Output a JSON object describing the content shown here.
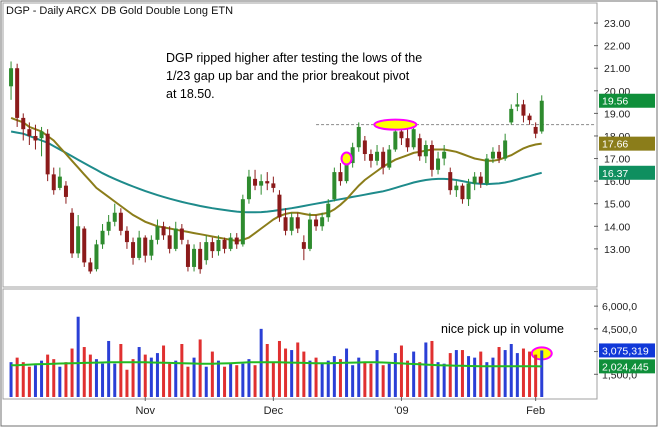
{
  "header": {
    "title": "DGP - Daily",
    "exchange": "ARCX",
    "name": "DB Gold Double Long ETN"
  },
  "annotations": {
    "breakout_note": [
      "DGP ripped higher after testing the lows of the",
      "1/23 gap up bar and the prior breakout pivot",
      "at 18.50."
    ],
    "volume_note": "nice pick up in volume"
  },
  "colors": {
    "background": "#ffffff",
    "frame": "#a0a0a0",
    "candle_up": "#2e8b2e",
    "candle_down": "#8b1a1a",
    "ma_short": "#8b7d1a",
    "ma_long": "#1e8b8b",
    "vol_up": "#2a3fd6",
    "vol_down": "#e03030",
    "vol_ma": "#22bb22",
    "highlight": "#ff00ff",
    "highlight_fill": "#ffff00",
    "pivot_line": "#8a8a8a",
    "tag_green": "#0f8f3a",
    "tag_teal": "#0f8f5f",
    "tag_blue": "#1038d8"
  },
  "chart_data": [
    {
      "type": "candlestick",
      "title": "DGP - Daily  ARCX  DB Gold Double Long ETN",
      "ylim": [
        11.4,
        23.8
      ],
      "y_ticks": [
        13.0,
        14.0,
        15.0,
        16.0,
        17.0,
        18.0,
        19.0,
        20.0,
        21.0,
        22.0,
        23.0
      ],
      "y_tick_labels": [
        "13.00",
        "14.00",
        "15.00",
        "16.00",
        "17.00",
        "18.00",
        "19.00",
        "20.00",
        "21.00",
        "22.00",
        "23.00"
      ],
      "x_labels": [
        {
          "label": "Nov",
          "index": 22
        },
        {
          "label": "Dec",
          "index": 43
        },
        {
          "label": "'09",
          "index": 64
        },
        {
          "label": "Feb",
          "index": 86
        }
      ],
      "pivot_level": 18.5,
      "price_tags": [
        {
          "label": "19.56",
          "value": 19.56,
          "color": "#0f8f3a"
        },
        {
          "label": "17.66",
          "value": 17.66,
          "color": "#8b7d1a"
        },
        {
          "label": "16.37",
          "value": 16.37,
          "color": "#0f8f5f"
        }
      ],
      "highlight_indices": [
        55,
        62,
        63,
        64
      ],
      "candles": [
        {
          "o": 20.2,
          "h": 21.3,
          "l": 19.6,
          "c": 21.0
        },
        {
          "o": 21.0,
          "h": 21.2,
          "l": 18.4,
          "c": 18.8
        },
        {
          "o": 18.8,
          "h": 19.0,
          "l": 17.8,
          "c": 18.3
        },
        {
          "o": 18.3,
          "h": 18.6,
          "l": 17.6,
          "c": 18.0
        },
        {
          "o": 18.0,
          "h": 18.5,
          "l": 17.4,
          "c": 17.8
        },
        {
          "o": 17.9,
          "h": 18.4,
          "l": 17.1,
          "c": 18.2
        },
        {
          "o": 18.1,
          "h": 18.3,
          "l": 16.0,
          "c": 16.3
        },
        {
          "o": 16.3,
          "h": 16.6,
          "l": 15.4,
          "c": 15.6
        },
        {
          "o": 15.7,
          "h": 16.6,
          "l": 15.6,
          "c": 16.2
        },
        {
          "o": 15.8,
          "h": 16.0,
          "l": 15.0,
          "c": 15.3
        },
        {
          "o": 14.6,
          "h": 14.8,
          "l": 12.6,
          "c": 12.8
        },
        {
          "o": 12.8,
          "h": 14.5,
          "l": 12.6,
          "c": 14.0
        },
        {
          "o": 13.9,
          "h": 14.0,
          "l": 12.2,
          "c": 12.4
        },
        {
          "o": 12.4,
          "h": 12.6,
          "l": 11.9,
          "c": 12.0
        },
        {
          "o": 12.1,
          "h": 13.4,
          "l": 12.0,
          "c": 13.2
        },
        {
          "o": 13.2,
          "h": 14.1,
          "l": 13.0,
          "c": 13.8
        },
        {
          "o": 13.8,
          "h": 14.5,
          "l": 13.6,
          "c": 14.2
        },
        {
          "o": 14.2,
          "h": 15.0,
          "l": 14.0,
          "c": 14.6
        },
        {
          "o": 14.6,
          "h": 14.8,
          "l": 13.6,
          "c": 13.8
        },
        {
          "o": 13.8,
          "h": 14.0,
          "l": 13.0,
          "c": 13.3
        },
        {
          "o": 13.3,
          "h": 13.5,
          "l": 12.3,
          "c": 12.6
        },
        {
          "o": 12.6,
          "h": 13.8,
          "l": 12.5,
          "c": 13.5
        },
        {
          "o": 13.5,
          "h": 13.6,
          "l": 12.4,
          "c": 12.7
        },
        {
          "o": 12.7,
          "h": 13.6,
          "l": 12.5,
          "c": 13.4
        },
        {
          "o": 13.4,
          "h": 14.3,
          "l": 13.2,
          "c": 14.0
        },
        {
          "o": 14.0,
          "h": 14.2,
          "l": 13.4,
          "c": 13.6
        },
        {
          "o": 13.6,
          "h": 14.0,
          "l": 12.8,
          "c": 13.0
        },
        {
          "o": 13.0,
          "h": 14.2,
          "l": 12.9,
          "c": 13.9
        },
        {
          "o": 13.9,
          "h": 14.1,
          "l": 13.2,
          "c": 13.4
        },
        {
          "o": 13.2,
          "h": 13.4,
          "l": 12.0,
          "c": 12.2
        },
        {
          "o": 12.2,
          "h": 13.2,
          "l": 12.0,
          "c": 13.0
        },
        {
          "o": 13.0,
          "h": 13.3,
          "l": 11.9,
          "c": 12.1
        },
        {
          "o": 12.5,
          "h": 13.6,
          "l": 12.3,
          "c": 13.3
        },
        {
          "o": 13.3,
          "h": 13.5,
          "l": 12.6,
          "c": 12.9
        },
        {
          "o": 12.9,
          "h": 13.6,
          "l": 12.7,
          "c": 13.4
        },
        {
          "o": 13.4,
          "h": 13.5,
          "l": 12.8,
          "c": 13.0
        },
        {
          "o": 13.0,
          "h": 13.7,
          "l": 12.9,
          "c": 13.5
        },
        {
          "o": 13.5,
          "h": 13.7,
          "l": 13.0,
          "c": 13.2
        },
        {
          "o": 13.2,
          "h": 15.4,
          "l": 13.1,
          "c": 15.2
        },
        {
          "o": 15.2,
          "h": 16.5,
          "l": 15.0,
          "c": 16.2
        },
        {
          "o": 16.1,
          "h": 16.5,
          "l": 15.6,
          "c": 15.8
        },
        {
          "o": 15.8,
          "h": 16.3,
          "l": 15.4,
          "c": 16.0
        },
        {
          "o": 16.0,
          "h": 16.4,
          "l": 15.6,
          "c": 15.9
        },
        {
          "o": 15.9,
          "h": 16.2,
          "l": 15.5,
          "c": 15.7
        },
        {
          "o": 15.4,
          "h": 15.6,
          "l": 14.2,
          "c": 14.4
        },
        {
          "o": 14.4,
          "h": 14.8,
          "l": 13.6,
          "c": 13.8
        },
        {
          "o": 13.8,
          "h": 14.6,
          "l": 13.6,
          "c": 14.4
        },
        {
          "o": 14.4,
          "h": 14.6,
          "l": 13.7,
          "c": 13.9
        },
        {
          "o": 13.3,
          "h": 13.6,
          "l": 12.5,
          "c": 13.0
        },
        {
          "o": 13.0,
          "h": 14.6,
          "l": 12.9,
          "c": 14.3
        },
        {
          "o": 14.3,
          "h": 14.5,
          "l": 13.8,
          "c": 14.0
        },
        {
          "o": 14.0,
          "h": 14.6,
          "l": 13.8,
          "c": 14.4
        },
        {
          "o": 14.4,
          "h": 15.2,
          "l": 14.2,
          "c": 15.0
        },
        {
          "o": 15.2,
          "h": 16.6,
          "l": 15.1,
          "c": 16.4
        },
        {
          "o": 16.4,
          "h": 16.8,
          "l": 15.8,
          "c": 16.0
        },
        {
          "o": 16.0,
          "h": 17.0,
          "l": 15.9,
          "c": 16.8
        },
        {
          "o": 16.8,
          "h": 17.7,
          "l": 16.6,
          "c": 17.5
        },
        {
          "o": 17.5,
          "h": 18.6,
          "l": 17.3,
          "c": 18.4
        },
        {
          "o": 17.8,
          "h": 18.0,
          "l": 16.9,
          "c": 17.2
        },
        {
          "o": 17.2,
          "h": 17.4,
          "l": 16.6,
          "c": 16.9
        },
        {
          "o": 16.9,
          "h": 17.6,
          "l": 16.7,
          "c": 17.3
        },
        {
          "o": 17.3,
          "h": 17.5,
          "l": 16.3,
          "c": 16.6
        },
        {
          "o": 16.6,
          "h": 17.6,
          "l": 16.5,
          "c": 17.4
        },
        {
          "o": 17.4,
          "h": 18.4,
          "l": 17.3,
          "c": 18.2
        },
        {
          "o": 18.2,
          "h": 18.5,
          "l": 17.6,
          "c": 17.9
        },
        {
          "o": 17.9,
          "h": 18.3,
          "l": 17.3,
          "c": 17.5
        },
        {
          "o": 17.5,
          "h": 18.6,
          "l": 17.4,
          "c": 18.3
        },
        {
          "o": 17.9,
          "h": 18.1,
          "l": 16.9,
          "c": 17.1
        },
        {
          "o": 17.1,
          "h": 17.8,
          "l": 16.8,
          "c": 17.6
        },
        {
          "o": 17.6,
          "h": 17.8,
          "l": 16.2,
          "c": 16.5
        },
        {
          "o": 16.5,
          "h": 17.3,
          "l": 16.3,
          "c": 17.0
        },
        {
          "o": 17.0,
          "h": 17.6,
          "l": 16.7,
          "c": 17.3
        },
        {
          "o": 16.4,
          "h": 16.6,
          "l": 15.4,
          "c": 15.6
        },
        {
          "o": 15.6,
          "h": 16.0,
          "l": 15.3,
          "c": 15.8
        },
        {
          "o": 15.8,
          "h": 15.9,
          "l": 15.0,
          "c": 15.2
        },
        {
          "o": 15.2,
          "h": 16.1,
          "l": 14.9,
          "c": 15.9
        },
        {
          "o": 15.9,
          "h": 16.4,
          "l": 15.6,
          "c": 16.2
        },
        {
          "o": 16.2,
          "h": 16.4,
          "l": 15.7,
          "c": 15.9
        },
        {
          "o": 15.9,
          "h": 17.2,
          "l": 15.8,
          "c": 17.0
        },
        {
          "o": 17.0,
          "h": 17.5,
          "l": 16.8,
          "c": 17.3
        },
        {
          "o": 17.3,
          "h": 17.6,
          "l": 16.8,
          "c": 17.0
        },
        {
          "o": 17.0,
          "h": 18.1,
          "l": 16.9,
          "c": 17.8
        },
        {
          "o": 18.6,
          "h": 19.4,
          "l": 18.5,
          "c": 19.2
        },
        {
          "o": 19.3,
          "h": 19.9,
          "l": 19.1,
          "c": 19.4
        },
        {
          "o": 19.4,
          "h": 19.6,
          "l": 18.6,
          "c": 18.9
        },
        {
          "o": 18.9,
          "h": 19.0,
          "l": 18.5,
          "c": 18.7
        },
        {
          "o": 18.4,
          "h": 18.6,
          "l": 17.9,
          "c": 18.1
        },
        {
          "o": 18.2,
          "h": 19.8,
          "l": 18.1,
          "c": 19.56
        }
      ],
      "ma_short_values": [
        18.8,
        18.7,
        18.6,
        18.4,
        18.3,
        18.2,
        18.0,
        17.8,
        17.5,
        17.2,
        16.9,
        16.6,
        16.3,
        16.0,
        15.7,
        15.5,
        15.3,
        15.1,
        14.9,
        14.7,
        14.5,
        14.35,
        14.2,
        14.1,
        14.0,
        13.95,
        13.9,
        13.85,
        13.8,
        13.75,
        13.7,
        13.65,
        13.6,
        13.55,
        13.5,
        13.45,
        13.4,
        13.35,
        13.4,
        13.5,
        13.7,
        13.9,
        14.1,
        14.3,
        14.45,
        14.55,
        14.6,
        14.6,
        14.55,
        14.5,
        14.5,
        14.55,
        14.6,
        14.75,
        14.95,
        15.2,
        15.5,
        15.8,
        16.05,
        16.25,
        16.45,
        16.65,
        16.8,
        16.95,
        17.05,
        17.15,
        17.25,
        17.3,
        17.35,
        17.4,
        17.4,
        17.4,
        17.35,
        17.3,
        17.2,
        17.1,
        17.0,
        16.95,
        16.9,
        16.9,
        16.95,
        17.05,
        17.15,
        17.3,
        17.45,
        17.55,
        17.62,
        17.66
      ],
      "ma_long_values": [
        18.2,
        18.15,
        18.1,
        18.0,
        17.9,
        17.8,
        17.7,
        17.55,
        17.4,
        17.25,
        17.1,
        16.95,
        16.8,
        16.65,
        16.5,
        16.35,
        16.22,
        16.1,
        15.98,
        15.87,
        15.76,
        15.66,
        15.56,
        15.47,
        15.38,
        15.3,
        15.22,
        15.15,
        15.08,
        15.02,
        14.96,
        14.9,
        14.85,
        14.8,
        14.76,
        14.72,
        14.68,
        14.65,
        14.63,
        14.62,
        14.62,
        14.63,
        14.65,
        14.68,
        14.72,
        14.76,
        14.8,
        14.85,
        14.9,
        14.95,
        15.0,
        15.05,
        15.1,
        15.15,
        15.2,
        15.25,
        15.3,
        15.35,
        15.4,
        15.45,
        15.5,
        15.55,
        15.62,
        15.7,
        15.78,
        15.86,
        15.94,
        16.0,
        16.05,
        16.08,
        16.1,
        16.1,
        16.08,
        16.05,
        16.0,
        15.95,
        15.9,
        15.88,
        15.87,
        15.88,
        15.9,
        15.94,
        16.0,
        16.07,
        16.15,
        16.22,
        16.3,
        16.37
      ]
    },
    {
      "type": "bar",
      "title": "Volume",
      "ylim": [
        0,
        7000
      ],
      "y_ticks": [
        1500,
        3000,
        4500,
        6000
      ],
      "y_tick_labels": [
        "1,500,0",
        "3,000,0",
        "4,500,0",
        "6,000,0"
      ],
      "value_tags": [
        {
          "label": "3,075,319",
          "value": 3075,
          "color": "#1038d8"
        },
        {
          "label": "2,024,445",
          "value": 2024,
          "color": "#0f8f3a"
        }
      ],
      "highlight_index": 87,
      "volume_ma_values": [
        2100,
        2100,
        2120,
        2140,
        2160,
        2170,
        2180,
        2200,
        2210,
        2220,
        2230,
        2240,
        2250,
        2260,
        2270,
        2280,
        2290,
        2300,
        2300,
        2300,
        2300,
        2300,
        2290,
        2280,
        2270,
        2260,
        2250,
        2240,
        2230,
        2220,
        2210,
        2200,
        2200,
        2200,
        2210,
        2220,
        2230,
        2250,
        2270,
        2290,
        2300,
        2300,
        2300,
        2300,
        2290,
        2280,
        2270,
        2260,
        2250,
        2240,
        2230,
        2230,
        2230,
        2240,
        2250,
        2260,
        2270,
        2280,
        2290,
        2290,
        2290,
        2280,
        2260,
        2240,
        2220,
        2200,
        2180,
        2160,
        2140,
        2120,
        2100,
        2090,
        2080,
        2070,
        2060,
        2050,
        2040,
        2030,
        2030,
        2030,
        2030,
        2030,
        2030,
        2030,
        2030,
        2030,
        2026,
        2024
      ],
      "values": [
        2300,
        2600,
        2300,
        2000,
        2100,
        2400,
        2800,
        2500,
        2000,
        2300,
        3200,
        5300,
        3300,
        2800,
        2500,
        2200,
        3700,
        2200,
        3500,
        1800,
        2500,
        3300,
        2800,
        2600,
        2900,
        3400,
        2200,
        2400,
        3500,
        2000,
        2600,
        3800,
        2000,
        3000,
        2400,
        2000,
        2200,
        2100,
        2200,
        2500,
        2100,
        4500,
        3500,
        2300,
        3700,
        3200,
        3100,
        3600,
        3000,
        2400,
        2600,
        2200,
        2400,
        2700,
        2500,
        3200,
        2100,
        2600,
        2300,
        2200,
        3100,
        2100,
        2200,
        2900,
        3400,
        2400,
        3000,
        2300,
        3600,
        3700,
        2300,
        2200,
        2900,
        3100,
        3100,
        2700,
        2600,
        3000,
        2300,
        2600,
        3300,
        3100,
        3500,
        2900,
        3200,
        3000,
        2800,
        3075
      ],
      "up": [
        true,
        false,
        false,
        false,
        true,
        true,
        false,
        false,
        true,
        false,
        false,
        true,
        false,
        false,
        true,
        true,
        true,
        true,
        false,
        false,
        false,
        true,
        false,
        true,
        true,
        false,
        false,
        true,
        false,
        false,
        true,
        false,
        true,
        false,
        true,
        false,
        true,
        false,
        true,
        true,
        false,
        true,
        false,
        false,
        false,
        false,
        true,
        false,
        false,
        true,
        false,
        true,
        true,
        true,
        false,
        true,
        true,
        true,
        false,
        false,
        true,
        false,
        true,
        true,
        false,
        false,
        true,
        false,
        true,
        false,
        true,
        true,
        false,
        true,
        false,
        true,
        true,
        false,
        true,
        true,
        false,
        true,
        true,
        true,
        false,
        false,
        false,
        true
      ]
    }
  ]
}
